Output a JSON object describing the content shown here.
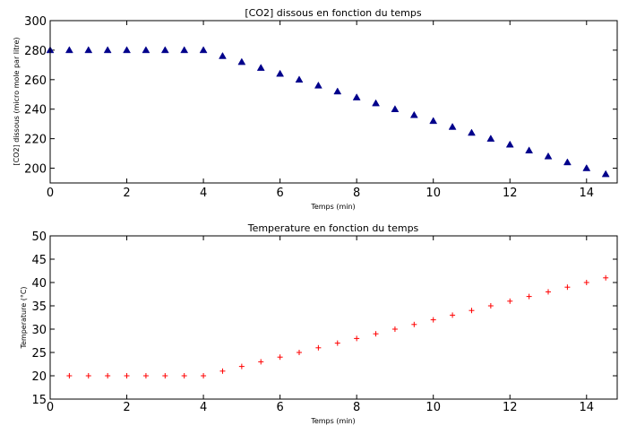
{
  "chart_data": [
    {
      "type": "scatter",
      "title": "[CO2] dissous en fonction du temps",
      "xlabel": "Temps (min)",
      "ylabel": "[CO2] dissous (micro mole par litre)",
      "xlim": [
        0,
        14.8
      ],
      "ylim": [
        190,
        300
      ],
      "xticks": [
        0,
        2,
        4,
        6,
        8,
        10,
        12,
        14
      ],
      "yticks": [
        200,
        220,
        240,
        260,
        280,
        300
      ],
      "grid": false,
      "marker": "triangle",
      "color": "#00008b",
      "x": [
        0,
        0.5,
        1,
        1.5,
        2,
        2.5,
        3,
        3.5,
        4,
        4.5,
        5,
        5.5,
        6,
        6.5,
        7,
        7.5,
        8,
        8.5,
        9,
        9.5,
        10,
        10.5,
        11,
        11.5,
        12,
        12.5,
        13,
        13.5,
        14,
        14.5
      ],
      "y": [
        280,
        280,
        280,
        280,
        280,
        280,
        280,
        280,
        280,
        276,
        272,
        268,
        264,
        260,
        256,
        252,
        248,
        244,
        240,
        236,
        232,
        228,
        224,
        220,
        216,
        212,
        208,
        204,
        200,
        196
      ]
    },
    {
      "type": "scatter",
      "title": "Temperature en fonction du temps",
      "xlabel": "Temps (min)",
      "ylabel": "Temperature (°C)",
      "xlim": [
        0,
        14.8
      ],
      "ylim": [
        15,
        50
      ],
      "xticks": [
        0,
        2,
        4,
        6,
        8,
        10,
        12,
        14
      ],
      "yticks": [
        15,
        20,
        25,
        30,
        35,
        40,
        45,
        50
      ],
      "grid": false,
      "marker": "plus",
      "color": "#ff0000",
      "x": [
        0.5,
        1,
        1.5,
        2,
        2.5,
        3,
        3.5,
        4,
        4.5,
        5,
        5.5,
        6,
        6.5,
        7,
        7.5,
        8,
        8.5,
        9,
        9.5,
        10,
        10.5,
        11,
        11.5,
        12,
        12.5,
        13,
        13.5,
        14,
        14.5
      ],
      "y": [
        20,
        20,
        20,
        20,
        20,
        20,
        20,
        20,
        21,
        22,
        23,
        24,
        25,
        26,
        27,
        28,
        29,
        30,
        31,
        32,
        33,
        34,
        35,
        36,
        37,
        38,
        39,
        40,
        41
      ]
    }
  ]
}
